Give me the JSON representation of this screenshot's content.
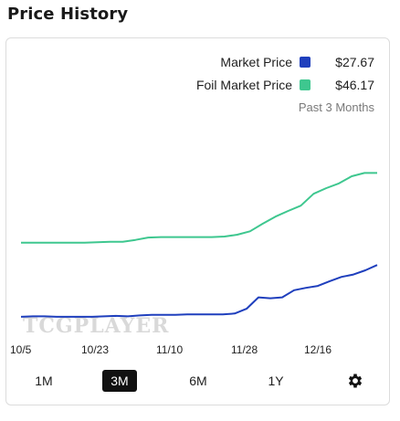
{
  "title": "Price History",
  "legend": [
    {
      "label": "Market Price",
      "value": "$27.67",
      "color": "#1f3fbd"
    },
    {
      "label": "Foil Market Price",
      "value": "$46.17",
      "color": "#3ec78f"
    }
  ],
  "range_label": "Past 3 Months",
  "watermark": "TCGPLAYER",
  "range_buttons": [
    "1M",
    "3M",
    "6M",
    "1Y"
  ],
  "active_range": "3M",
  "settings_icon": "gear-icon",
  "chart_data": {
    "type": "line",
    "x_tick_labels": [
      "10/5",
      "10/23",
      "11/10",
      "11/28",
      "12/16"
    ],
    "y_range": [
      15,
      65
    ],
    "series": [
      {
        "name": "Market Price",
        "color": "#1f3fbd",
        "values": [
          17.9,
          18.0,
          18.0,
          17.9,
          17.9,
          17.9,
          17.9,
          18.0,
          18.1,
          18.0,
          18.2,
          18.3,
          18.3,
          18.3,
          18.4,
          18.4,
          18.4,
          18.4,
          18.6,
          19.6,
          22.0,
          21.8,
          22.0,
          23.5,
          24.0,
          24.4,
          25.4,
          26.3,
          26.8,
          27.7,
          28.8
        ]
      },
      {
        "name": "Foil Market Price",
        "color": "#3ec78f",
        "values": [
          33.5,
          33.5,
          33.5,
          33.5,
          33.5,
          33.5,
          33.6,
          33.7,
          33.7,
          34.1,
          34.6,
          34.7,
          34.7,
          34.7,
          34.7,
          34.7,
          34.8,
          35.2,
          35.9,
          37.5,
          39.0,
          40.2,
          41.3,
          43.8,
          45.0,
          46.0,
          47.5,
          48.2,
          48.2
        ]
      }
    ]
  }
}
